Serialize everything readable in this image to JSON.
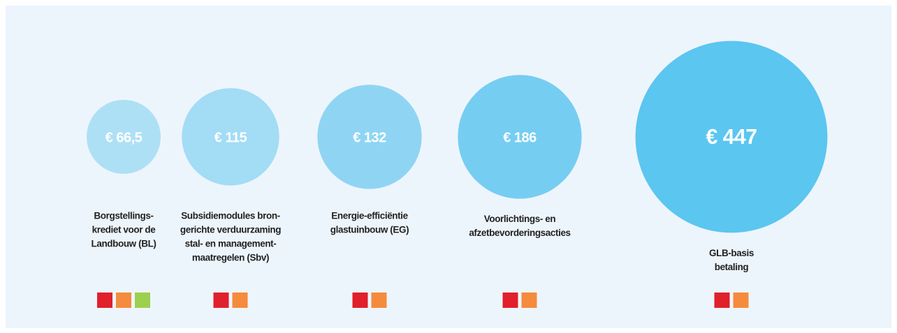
{
  "chart_data": {
    "type": "bubble",
    "items": [
      {
        "value": 66.5,
        "value_label": "€ 66,5",
        "color": "#aee0f5",
        "label_lines": [
          "Borgstellings-",
          "krediet voor de",
          "Landbouw (BL)"
        ],
        "markers": [
          "#e0202b",
          "#f58b3c",
          "#9dcf4f"
        ]
      },
      {
        "value": 115,
        "value_label": "€ 115",
        "color": "#a3dcf5",
        "label_lines": [
          "Subsidiemodules bron-",
          "gerichte verduurzaming",
          "stal- en management-",
          "maatregelen (Sbv)"
        ],
        "markers": [
          "#e0202b",
          "#f58b3c"
        ]
      },
      {
        "value": 132,
        "value_label": "€ 132",
        "color": "#8fd5f3",
        "label_lines": [
          "Energie-efficiëntie",
          "glastuinbouw (EG)"
        ],
        "markers": [
          "#e0202b",
          "#f58b3c"
        ]
      },
      {
        "value": 186,
        "value_label": "€ 186",
        "color": "#76cdf2",
        "label_lines": [
          "Voorlichtings- en",
          "afzetbevorderingsacties"
        ],
        "markers": [
          "#e0202b",
          "#f58b3c"
        ]
      },
      {
        "value": 447,
        "value_label": "€ 447",
        "color": "#5bc6f0",
        "label_lines": [
          "GLB-basis",
          "betaling"
        ],
        "markers": [
          "#e0202b",
          "#f58b3c"
        ]
      }
    ]
  }
}
